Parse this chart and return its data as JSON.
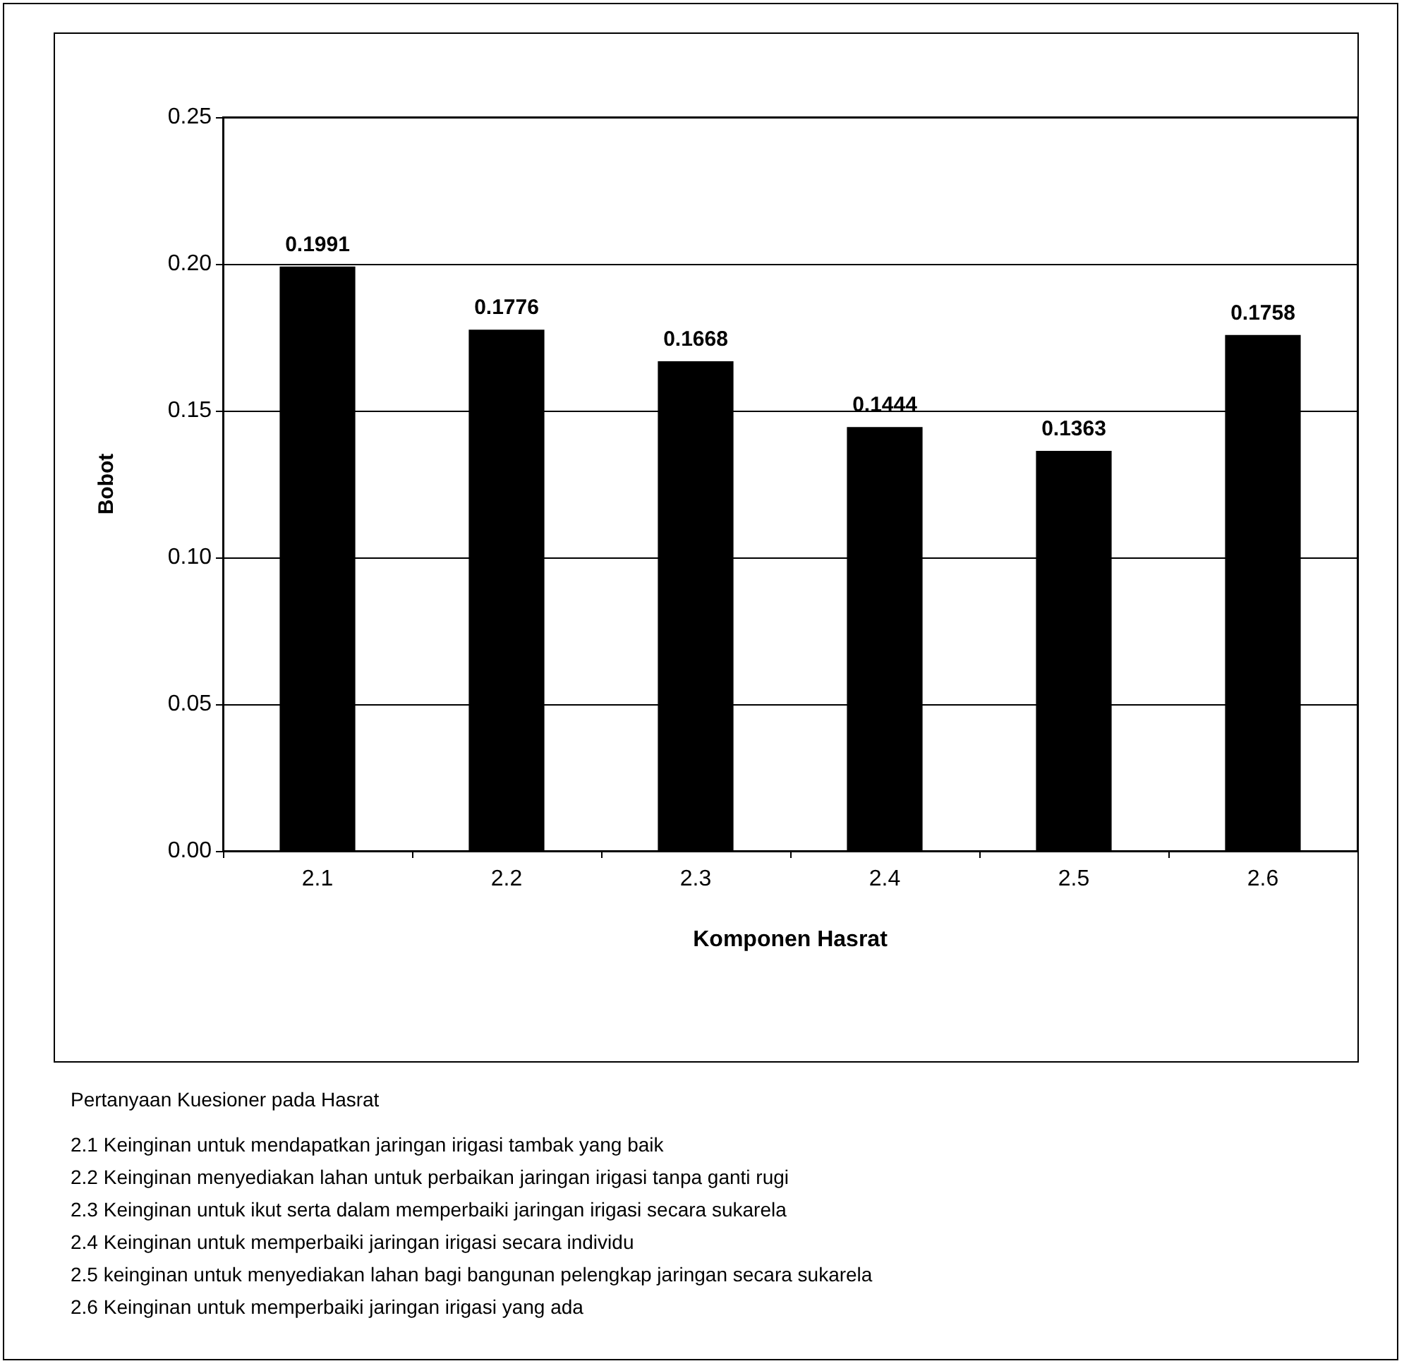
{
  "chart_data": {
    "type": "bar",
    "xlabel": "Komponen Hasrat",
    "ylabel": "Bobot",
    "categories": [
      "2.1",
      "2.2",
      "2.3",
      "2.4",
      "2.5",
      "2.6"
    ],
    "values": [
      0.1991,
      0.1776,
      0.1668,
      0.1444,
      0.1363,
      0.1758
    ],
    "color": "#000000",
    "data_labels": true,
    "grid": "y",
    "ylim": [
      0,
      0.25
    ],
    "yticks": [
      {
        "value": 0,
        "label": "0.00"
      },
      {
        "value": 0.05,
        "label": "0.05"
      },
      {
        "value": 0.1,
        "label": "0.10"
      },
      {
        "value": 0.15,
        "label": "0.15"
      },
      {
        "value": 0.2,
        "label": "0.20"
      },
      {
        "value": 0.25,
        "label": "0.25"
      }
    ],
    "annotations": [
      "Pertanyaan Kuesioner pada Hasrat",
      "2.1 Keinginan untuk mendapatkan jaringan irigasi tambak yang baik",
      "2.2 Keinginan menyediakan lahan untuk perbaikan jaringan irigasi tanpa ganti rugi",
      "2.3 Keinginan untuk ikut serta dalam memperbaiki jaringan irigasi secara sukarela",
      "2.4 Keinginan untuk memperbaiki jaringan irigasi secara individu",
      "2.5 keinginan untuk menyediakan lahan bagi bangunan pelengkap jaringan secara sukarela",
      "2.6 Keinginan untuk memperbaiki jaringan irigasi yang ada"
    ]
  }
}
